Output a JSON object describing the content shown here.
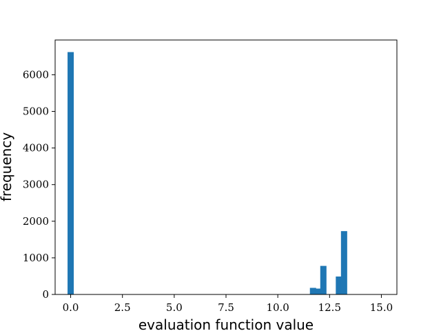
{
  "chart_data": {
    "type": "bar",
    "title": "",
    "xlabel": "evaluation function value",
    "ylabel": "frequency",
    "xlim": [
      -0.75,
      15.75
    ],
    "ylim": [
      0,
      6950
    ],
    "bin_width": 0.3,
    "color": "#1f77b4",
    "grid": false,
    "legend": "none",
    "bins": [
      {
        "x": 0.0,
        "value": 6620
      },
      {
        "x": 11.7,
        "value": 180
      },
      {
        "x": 11.95,
        "value": 160
      },
      {
        "x": 12.2,
        "value": 780
      },
      {
        "x": 12.95,
        "value": 490
      },
      {
        "x": 13.2,
        "value": 1730
      }
    ],
    "x_ticks": [
      {
        "value": 0.0,
        "label": "0.0"
      },
      {
        "value": 2.5,
        "label": "2.5"
      },
      {
        "value": 5.0,
        "label": "5.0"
      },
      {
        "value": 7.5,
        "label": "7.5"
      },
      {
        "value": 10.0,
        "label": "10.0"
      },
      {
        "value": 12.5,
        "label": "12.5"
      },
      {
        "value": 15.0,
        "label": "15.0"
      }
    ],
    "y_ticks": [
      {
        "value": 0,
        "label": "0"
      },
      {
        "value": 1000,
        "label": "1000"
      },
      {
        "value": 2000,
        "label": "2000"
      },
      {
        "value": 3000,
        "label": "3000"
      },
      {
        "value": 4000,
        "label": "4000"
      },
      {
        "value": 5000,
        "label": "5000"
      },
      {
        "value": 6000,
        "label": "6000"
      }
    ]
  }
}
